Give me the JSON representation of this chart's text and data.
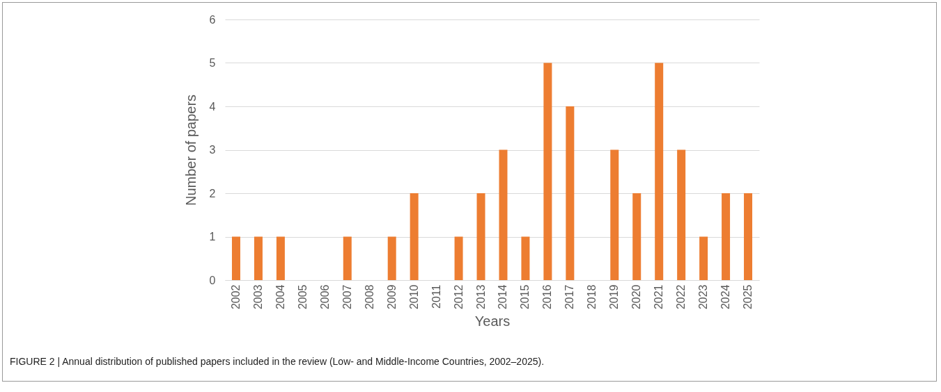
{
  "chart_data": {
    "type": "bar",
    "xlabel": "Years",
    "ylabel": "Number of papers",
    "categories": [
      "2002",
      "2003",
      "2004",
      "2005",
      "2006",
      "2007",
      "2008",
      "2009",
      "2010",
      "2011",
      "2012",
      "2013",
      "2014",
      "2015",
      "2016",
      "2017",
      "2018",
      "2019",
      "2020",
      "2021",
      "2022",
      "2023",
      "2024",
      "2025"
    ],
    "values": [
      1,
      1,
      1,
      0,
      0,
      1,
      0,
      1,
      2,
      0,
      1,
      2,
      3,
      1,
      5,
      4,
      0,
      3,
      2,
      5,
      3,
      1,
      2,
      2
    ],
    "color": "#ed7d31",
    "ylim": [
      0,
      6
    ],
    "yticks": [
      0,
      1,
      2,
      3,
      4,
      5,
      6
    ],
    "grid": "y",
    "annotations": [
      "FIGURE 2 | Annual distribution of published papers included in the review (Low- and Middle-Income Countries, 2002–2025)."
    ]
  }
}
